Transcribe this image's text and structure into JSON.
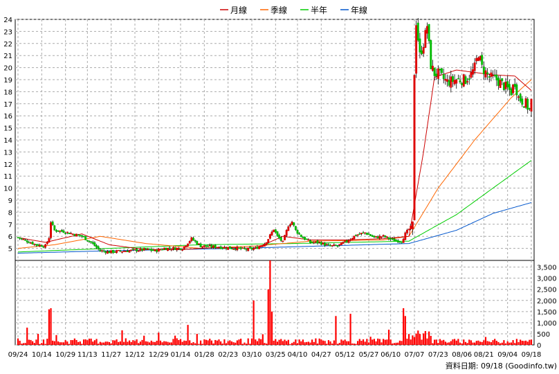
{
  "chart_data": {
    "type": "candlestick",
    "legend": [
      {
        "name": "月線",
        "color": "#cc0000"
      },
      {
        "name": "季線",
        "color": "#ff6600"
      },
      {
        "name": "半年",
        "color": "#00cc00"
      },
      {
        "name": "年線",
        "color": "#0055cc"
      }
    ],
    "price_axis": {
      "ylim": [
        4,
        24
      ],
      "ticks": [
        5,
        6,
        7,
        8,
        9,
        10,
        11,
        12,
        13,
        14,
        15,
        16,
        17,
        18,
        19,
        20,
        21,
        22,
        23,
        24
      ]
    },
    "volume_axis": {
      "ylim": [
        0,
        3800
      ],
      "ticks": [
        0,
        500,
        1000,
        1500,
        2000,
        2500,
        3000,
        3500
      ],
      "tick_labels": [
        "0",
        "500",
        "1,000",
        "1,500",
        "2,000",
        "2,500",
        "3,000",
        "3,500"
      ]
    },
    "x_tick_labels": [
      "09/24",
      "10/14",
      "10/29",
      "11/13",
      "11/27",
      "12/12",
      "12/29",
      "01/14",
      "01/28",
      "02/23",
      "03/10",
      "03/25",
      "04/10",
      "04/27",
      "05/12",
      "05/27",
      "06/10",
      "07/07",
      "07/23",
      "08/06",
      "08/21",
      "09/04",
      "09/18"
    ],
    "footer": "資料日期: 09/18 (Goodinfo.tw)",
    "up_color": "#dd0000",
    "down_color": "#00bb00",
    "volume_color": "#ff0000",
    "price_path": [
      [
        0,
        5.9
      ],
      [
        5,
        5.6
      ],
      [
        10,
        5.3
      ],
      [
        15,
        5.2
      ],
      [
        17,
        5.9
      ],
      [
        18,
        7.2
      ],
      [
        20,
        6.5
      ],
      [
        25,
        6.4
      ],
      [
        30,
        6.2
      ],
      [
        35,
        6.0
      ],
      [
        40,
        5.5
      ],
      [
        45,
        4.8
      ],
      [
        50,
        4.7
      ],
      [
        60,
        4.8
      ],
      [
        70,
        4.9
      ],
      [
        75,
        4.8
      ],
      [
        80,
        5.0
      ],
      [
        90,
        5.0
      ],
      [
        95,
        5.8
      ],
      [
        100,
        5.2
      ],
      [
        110,
        5.1
      ],
      [
        120,
        5.0
      ],
      [
        125,
        4.9
      ],
      [
        130,
        5.0
      ],
      [
        135,
        5.4
      ],
      [
        137,
        5.8
      ],
      [
        140,
        6.6
      ],
      [
        142,
        6.0
      ],
      [
        145,
        5.5
      ],
      [
        148,
        6.9
      ],
      [
        150,
        7.2
      ],
      [
        152,
        6.5
      ],
      [
        155,
        6.0
      ],
      [
        160,
        5.5
      ],
      [
        165,
        5.5
      ],
      [
        170,
        5.2
      ],
      [
        175,
        5.2
      ],
      [
        180,
        5.6
      ],
      [
        185,
        6.1
      ],
      [
        190,
        6.3
      ],
      [
        195,
        5.9
      ],
      [
        200,
        6.0
      ],
      [
        205,
        5.7
      ],
      [
        210,
        5.6
      ],
      [
        212,
        6.2
      ],
      [
        214,
        6.6
      ],
      [
        216,
        6.9
      ],
      [
        217,
        19.6
      ],
      [
        218,
        23.8
      ],
      [
        220,
        21.0
      ],
      [
        222,
        22.0
      ],
      [
        224,
        23.5
      ],
      [
        226,
        20.2
      ],
      [
        228,
        19.5
      ],
      [
        230,
        19.5
      ],
      [
        232,
        19.2
      ],
      [
        235,
        18.8
      ],
      [
        240,
        19.0
      ],
      [
        245,
        19.0
      ],
      [
        248,
        19.4
      ],
      [
        250,
        20.0
      ],
      [
        252,
        21.2
      ],
      [
        254,
        20.0
      ],
      [
        258,
        19.2
      ],
      [
        262,
        19.0
      ],
      [
        266,
        18.5
      ],
      [
        270,
        18.0
      ],
      [
        272,
        18.8
      ],
      [
        274,
        17.5
      ],
      [
        278,
        17.0
      ],
      [
        280,
        16.5
      ],
      [
        281,
        17.2
      ]
    ],
    "month_ma": [
      [
        0,
        5.9
      ],
      [
        15,
        5.5
      ],
      [
        35,
        6.2
      ],
      [
        50,
        5.3
      ],
      [
        70,
        4.9
      ],
      [
        90,
        4.9
      ],
      [
        110,
        5.1
      ],
      [
        130,
        5.0
      ],
      [
        145,
        6.0
      ],
      [
        160,
        5.7
      ],
      [
        180,
        5.7
      ],
      [
        200,
        5.8
      ],
      [
        214,
        6.0
      ],
      [
        222,
        13.0
      ],
      [
        228,
        19.2
      ],
      [
        240,
        19.8
      ],
      [
        260,
        19.4
      ],
      [
        272,
        19.3
      ],
      [
        281,
        18.1
      ]
    ],
    "quarter_ma": [
      [
        0,
        5.0
      ],
      [
        20,
        5.3
      ],
      [
        45,
        6.0
      ],
      [
        70,
        5.4
      ],
      [
        100,
        5.0
      ],
      [
        130,
        5.2
      ],
      [
        160,
        5.6
      ],
      [
        200,
        5.7
      ],
      [
        214,
        6.0
      ],
      [
        230,
        10.0
      ],
      [
        250,
        14.0
      ],
      [
        270,
        17.5
      ],
      [
        281,
        19.0
      ]
    ],
    "halfyear_ma": [
      [
        0,
        4.7
      ],
      [
        50,
        5.0
      ],
      [
        100,
        5.3
      ],
      [
        150,
        5.4
      ],
      [
        214,
        5.6
      ],
      [
        240,
        7.8
      ],
      [
        260,
        10.0
      ],
      [
        281,
        12.3
      ]
    ],
    "year_ma": [
      [
        0,
        4.6
      ],
      [
        50,
        4.8
      ],
      [
        120,
        5.0
      ],
      [
        214,
        5.4
      ],
      [
        240,
        6.5
      ],
      [
        260,
        7.9
      ],
      [
        281,
        8.8
      ]
    ],
    "volume_spikes": [
      [
        17,
        1600
      ],
      [
        18,
        1650
      ],
      [
        93,
        900
      ],
      [
        129,
        2000
      ],
      [
        137,
        2500
      ],
      [
        138,
        3800
      ],
      [
        139,
        1500
      ],
      [
        174,
        1300
      ],
      [
        182,
        1400
      ],
      [
        211,
        1650
      ],
      [
        212,
        1300
      ]
    ]
  }
}
